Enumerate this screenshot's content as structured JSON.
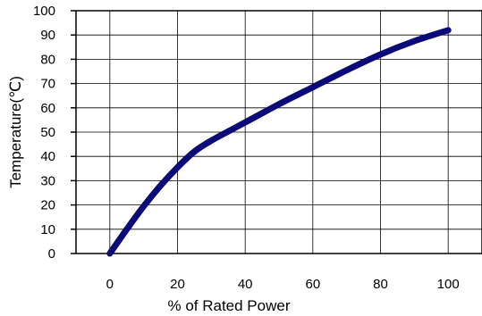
{
  "chart_data": {
    "type": "line",
    "xlabel": "% of Rated Power",
    "ylabel": "Temperature(℃)",
    "xlim": [
      -10,
      110
    ],
    "ylim": [
      0,
      100
    ],
    "xticks": [
      "0",
      "20",
      "40",
      "60",
      "80",
      "100"
    ],
    "yticks": [
      "0",
      "10",
      "20",
      "30",
      "40",
      "50",
      "60",
      "70",
      "80",
      "90",
      "100"
    ],
    "grid": true,
    "legend": "none",
    "series": [
      {
        "color": "#0a0a78",
        "x": [
          0,
          5,
          10,
          15,
          20,
          25,
          30,
          40,
          50,
          60,
          70,
          80,
          90,
          100
        ],
        "y": [
          0,
          10,
          19.5,
          28,
          35.5,
          42,
          46.5,
          54,
          61.5,
          68.5,
          75.5,
          82,
          87.5,
          92
        ]
      }
    ]
  }
}
